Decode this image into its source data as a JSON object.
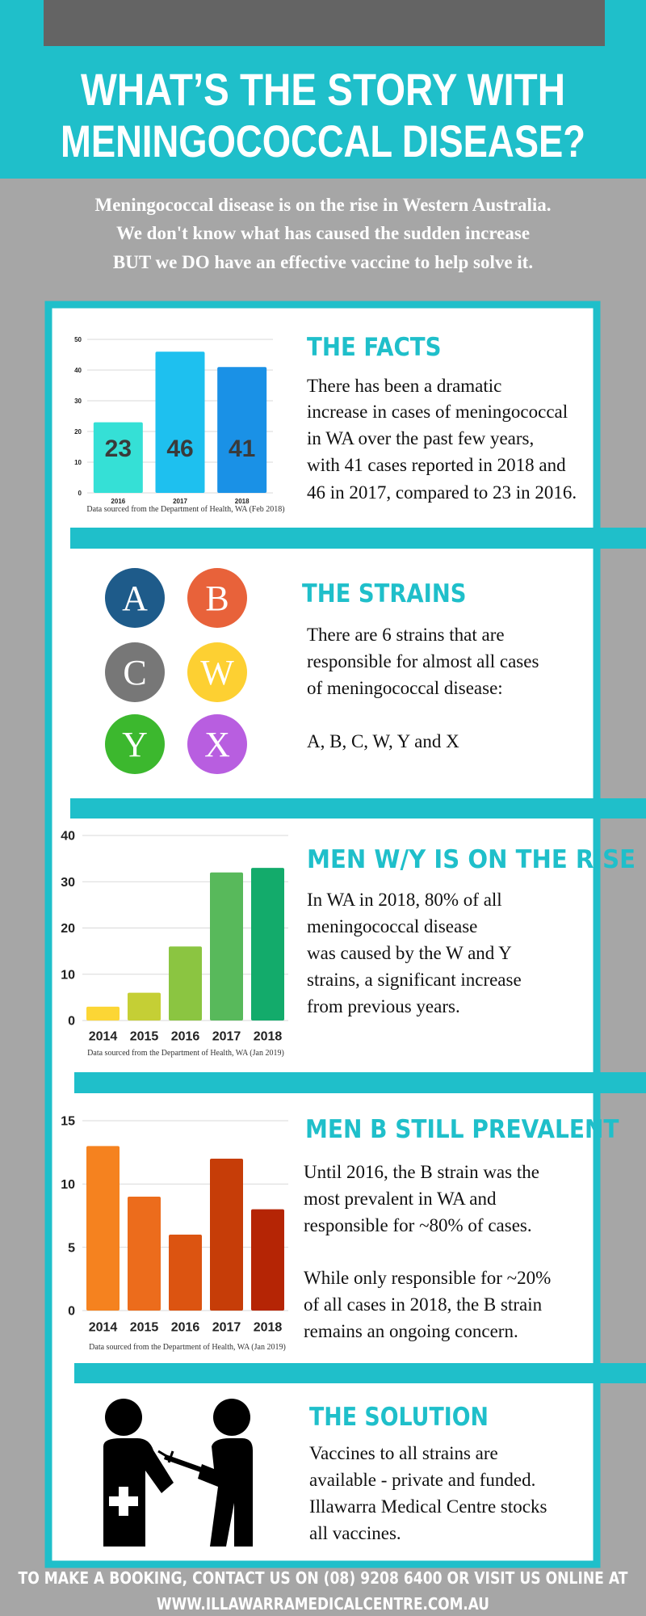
{
  "header": {
    "title_lines": [
      "WHAT’S THE STORY WITH",
      "MENINGOCOCCAL DISEASE?"
    ]
  },
  "intro_lines": [
    "Meningococcal disease is on the rise in Western Australia.",
    "We don't know what has caused the sudden increase",
    "BUT we DO have an effective vaccine to help solve it."
  ],
  "sections": [
    {
      "heading": "THE FACTS",
      "lines": [
        "There has been a dramatic",
        "increase in cases of meningococcal",
        "in WA over the past few years,",
        "with 41 cases reported in 2018 and",
        "46 in 2017, compared to 23 in 2016."
      ]
    },
    {
      "heading": "THE STRAINS",
      "lines": [
        "There are 6 strains that are",
        "responsible for almost all cases",
        "of meningococcal disease:",
        "A, B, C, W, Y and X"
      ]
    },
    {
      "heading": "MEN W/Y IS ON THE RISE",
      "lines": [
        "In WA in 2018, 80% of all",
        "meningococcal disease",
        "was caused by the W and Y",
        "strains, a significant increase",
        "from previous years."
      ]
    },
    {
      "heading": "MEN B STILL PREVALENT",
      "lines": [
        "Until 2016, the B strain was the",
        "most prevalent in WA and",
        "responsible for ~80% of cases.",
        "While only responsible for ~20%",
        "of all cases in 2018, the B strain",
        "remains an ongoing concern."
      ]
    },
    {
      "heading": "THE SOLUTION",
      "lines": [
        "Vaccines to all strains are",
        "available - private and funded.",
        "Illawarra Medical Centre stocks",
        "all vaccines."
      ]
    }
  ],
  "strains": [
    {
      "letter": "A",
      "color": "#1e5b8a"
    },
    {
      "letter": "B",
      "color": "#e8623a"
    },
    {
      "letter": "C",
      "color": "#777777"
    },
    {
      "letter": "W",
      "color": "#fdd032"
    },
    {
      "letter": "Y",
      "color": "#3cb82e"
    },
    {
      "letter": "X",
      "color": "#b85ee0"
    }
  ],
  "chart_data": [
    {
      "type": "bar",
      "categories": [
        "2016",
        "2017",
        "2018"
      ],
      "values": [
        23,
        46,
        41
      ],
      "colors": [
        "#35e0d6",
        "#1ec0ef",
        "#1a91e6"
      ],
      "ylim": [
        0,
        50
      ],
      "yticks": [
        0,
        10,
        20,
        30,
        40,
        50
      ],
      "grid": true,
      "source": "Data sourced from the Department of Health, WA (Feb 2018)"
    },
    {
      "type": "bar",
      "categories": [
        "2014",
        "2015",
        "2016",
        "2017",
        "2018"
      ],
      "values": [
        3,
        6,
        16,
        32,
        33
      ],
      "colors": [
        "#fcd635",
        "#c5cf35",
        "#8bc541",
        "#58b95b",
        "#13ab6b"
      ],
      "ylim": [
        0,
        40
      ],
      "yticks": [
        0,
        10,
        20,
        30,
        40
      ],
      "grid": true,
      "source": "Data sourced from the Department of Health, WA (Jan 2019)"
    },
    {
      "type": "bar",
      "categories": [
        "2014",
        "2015",
        "2016",
        "2017",
        "2018"
      ],
      "values": [
        13,
        9,
        6,
        12,
        8
      ],
      "colors": [
        "#f5821f",
        "#ec6c1c",
        "#dc5411",
        "#c63d08",
        "#b52505"
      ],
      "ylim": [
        0,
        15
      ],
      "yticks": [
        0,
        5,
        10,
        15
      ],
      "grid": true,
      "source": "Data sourced from the Department of Health, WA (Jan 2019)"
    }
  ],
  "footer_lines": [
    "TO MAKE A BOOKING, CONTACT US ON (08) 9208 6400 OR VISIT US ONLINE AT",
    "WWW.ILLAWARRAMEDICALCENTRE.COM.AU"
  ]
}
